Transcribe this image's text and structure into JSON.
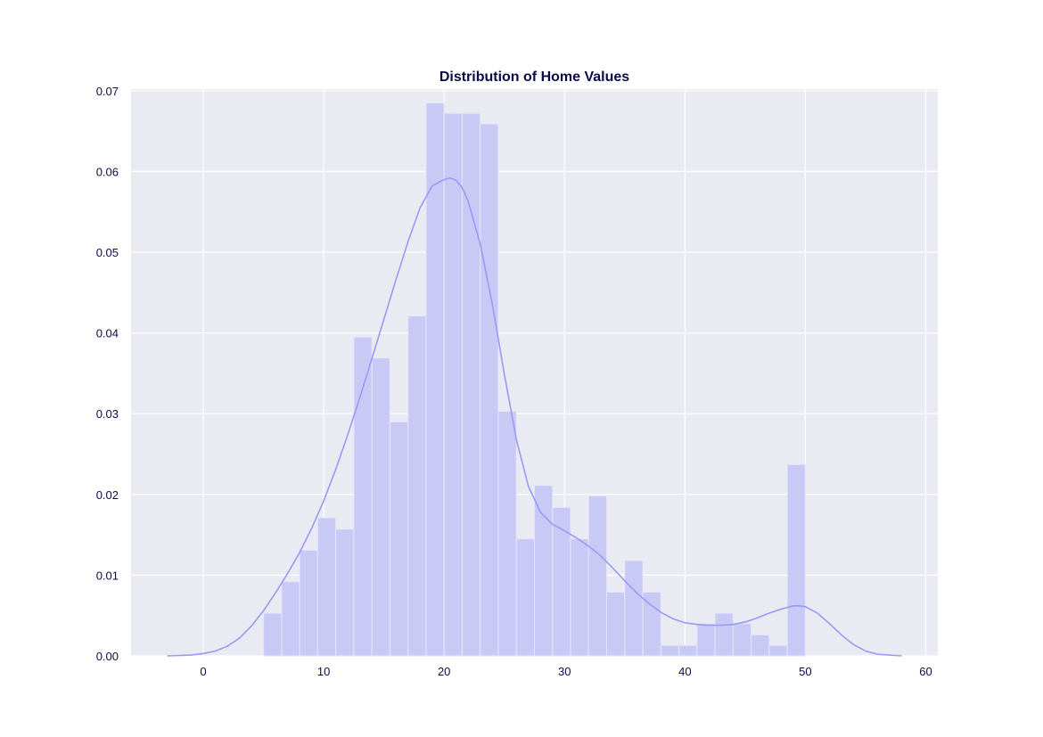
{
  "chart_data": {
    "type": "histogram",
    "title": "Distribution of Home Values",
    "xlabel": "",
    "ylabel": "",
    "xlim": [
      -6,
      61
    ],
    "ylim": [
      0,
      0.0702
    ],
    "xticks": [
      0,
      10,
      20,
      30,
      40,
      50,
      60
    ],
    "yticks": [
      0.0,
      0.01,
      0.02,
      0.03,
      0.04,
      0.05,
      0.06,
      0.07
    ],
    "ytick_labels": [
      "0.00",
      "0.01",
      "0.02",
      "0.03",
      "0.04",
      "0.05",
      "0.06",
      "0.07"
    ],
    "grid": true,
    "bins": {
      "start": 5.0,
      "width": 1.5,
      "densities": [
        0.0053,
        0.0092,
        0.0131,
        0.0171,
        0.0157,
        0.0395,
        0.0369,
        0.029,
        0.0421,
        0.0685,
        0.0672,
        0.0672,
        0.0659,
        0.0303,
        0.0145,
        0.0211,
        0.0184,
        0.0145,
        0.0198,
        0.0079,
        0.0118,
        0.0079,
        0.0013,
        0.0013,
        0.004,
        0.0053,
        0.004,
        0.0026,
        0.0013,
        0.0237
      ]
    },
    "kde": {
      "x": [
        -3,
        -1,
        0,
        1,
        2,
        3,
        4,
        5,
        6,
        7,
        8,
        9,
        10,
        11,
        12,
        13,
        14,
        15,
        16,
        17,
        18,
        19,
        20,
        20.5,
        21,
        21.5,
        22,
        23,
        24,
        25,
        26,
        27,
        28,
        29,
        30,
        31,
        32,
        33,
        34,
        35,
        36,
        37,
        38,
        39,
        40,
        41,
        42,
        43,
        44,
        45,
        46,
        47,
        48,
        49,
        49.5,
        50,
        51,
        52,
        53,
        54,
        55,
        56,
        58
      ],
      "y": [
        0.0,
        0.0001,
        0.0003,
        0.0006,
        0.0012,
        0.0022,
        0.0037,
        0.0056,
        0.0078,
        0.0102,
        0.0128,
        0.0158,
        0.0192,
        0.0231,
        0.0274,
        0.032,
        0.0368,
        0.0417,
        0.0466,
        0.0513,
        0.0555,
        0.0582,
        0.059,
        0.0592,
        0.0589,
        0.058,
        0.0563,
        0.051,
        0.0436,
        0.0349,
        0.0268,
        0.021,
        0.0178,
        0.0163,
        0.0155,
        0.0146,
        0.0136,
        0.0124,
        0.0109,
        0.0093,
        0.0078,
        0.0065,
        0.0054,
        0.0046,
        0.0041,
        0.0039,
        0.0038,
        0.0038,
        0.0039,
        0.0042,
        0.0047,
        0.0053,
        0.0058,
        0.0062,
        0.0062,
        0.0061,
        0.0053,
        0.004,
        0.0026,
        0.0014,
        0.0006,
        0.0002,
        0.0
      ]
    },
    "colors": {
      "background": "#eaeaf2",
      "grid": "#ffffff",
      "bar_fill": "#c9c9f5",
      "bar_edge": "#e6e6fb",
      "kde_line": "#9999f7",
      "text": "#0b0b4a"
    }
  }
}
